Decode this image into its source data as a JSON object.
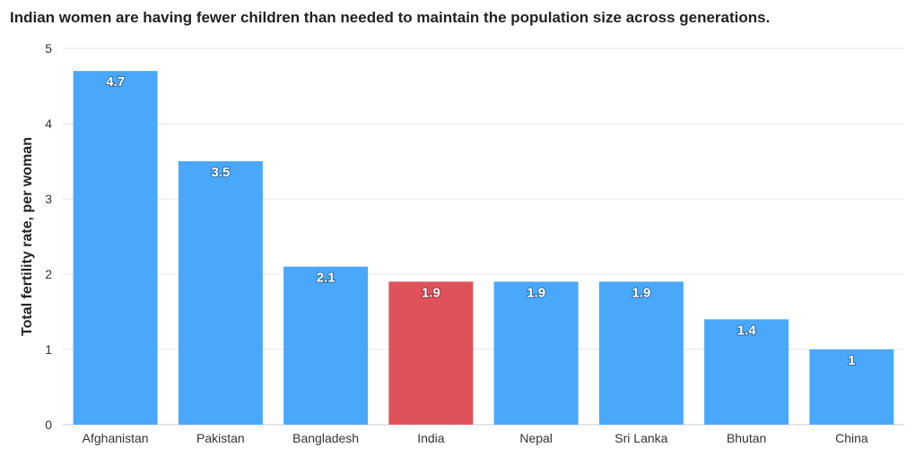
{
  "chart_data": {
    "type": "bar",
    "title": "Indian women are having fewer children than needed to maintain the population size across generations.",
    "xlabel": "",
    "ylabel": "Total fertility rate, per woman",
    "ylim": [
      0,
      5
    ],
    "yticks": [
      "0",
      "1",
      "2",
      "3",
      "4",
      "5"
    ],
    "grid": true,
    "categories": [
      "Afghanistan",
      "Pakistan",
      "Bangladesh",
      "India",
      "Nepal",
      "Sri Lanka",
      "Bhutan",
      "China"
    ],
    "values": [
      4.7,
      3.5,
      2.1,
      1.9,
      1.9,
      1.9,
      1.4,
      1
    ],
    "labels": [
      "4.7",
      "3.5",
      "2.1",
      "1.9",
      "1.9",
      "1.9",
      "1.4",
      "1"
    ],
    "highlight_category": "India",
    "colors": {
      "default": "#4aa8fa",
      "highlight": "#e0525a"
    }
  }
}
